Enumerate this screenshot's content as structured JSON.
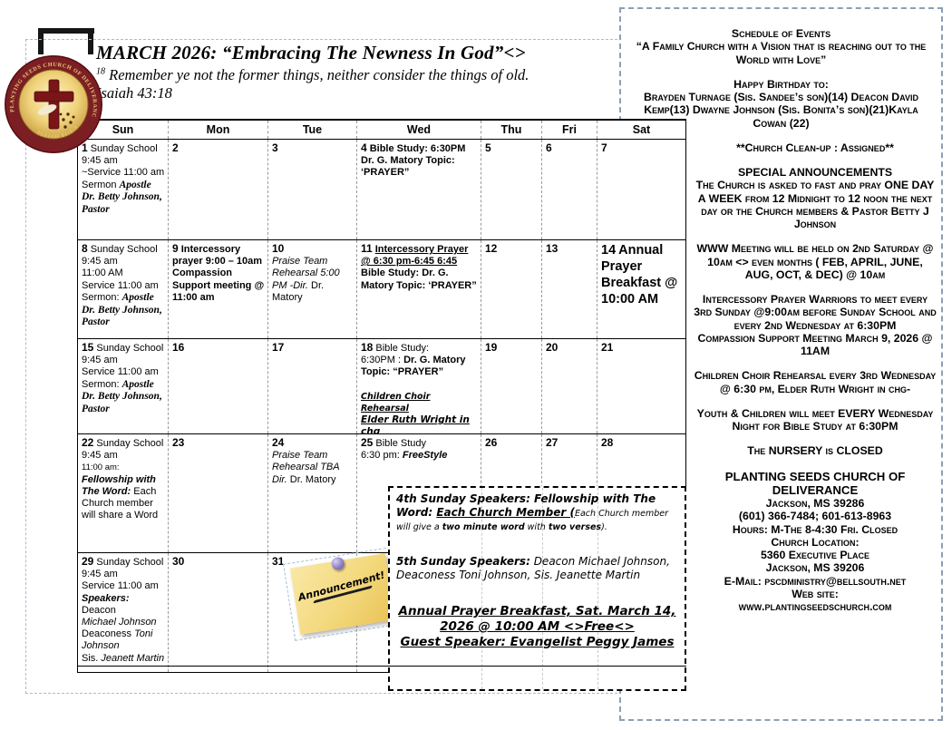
{
  "header": {
    "title": "MARCH 2026: “Embracing The Newness In God”<>",
    "verse_sup": "18",
    "verse": " Remember ye not the former things, neither consider the things of old.",
    "verse_ref": "Isaiah 43:18"
  },
  "logo": {
    "ring_text": "PLANTING SEEDS CHURCH OF DELIVERANCE",
    "bottom_text": "ISAIAH 61:1-3"
  },
  "sticky_note": {
    "text": "Announcement!"
  },
  "calendar": {
    "weekdays": [
      "Sun",
      "Mon",
      "Tue",
      "Wed",
      "Thu",
      "Fri",
      "Sat"
    ],
    "cells": [
      {
        "day": "1",
        "segs": [
          {
            "t": "Sunday School"
          },
          {
            "t": "9:45 am",
            "br": 1
          },
          {
            "t": "~Service 11:00 am Sermon ",
            "br": 1
          },
          {
            "t": "Apostle Dr. Betty Johnson, Pastor",
            "s": "bi"
          }
        ]
      },
      {
        "day": "2",
        "segs": []
      },
      {
        "day": "3",
        "segs": []
      },
      {
        "day": "4",
        "segs": [
          {
            "t": "Bible Study: 6:30PM",
            "s": "b"
          },
          {
            "t": "Dr. G. Matory Topic:",
            "s": "b",
            "br": 1
          },
          {
            "t": "‘PRAYER”",
            "s": "b",
            "br": 1
          }
        ]
      },
      {
        "day": "5",
        "segs": []
      },
      {
        "day": "6",
        "segs": []
      },
      {
        "day": "7",
        "segs": []
      },
      {
        "day": "8",
        "segs": [
          {
            "t": "Sunday School"
          },
          {
            "t": "9:45 am",
            "br": 1
          },
          {
            "t": "11:00 AM",
            "br": 1
          },
          {
            "t": "Service 11:00 am",
            "br": 1
          },
          {
            "t": "Sermon: ",
            "br": 1
          },
          {
            "t": "Apostle Dr. Betty Johnson, Pastor",
            "s": "bi"
          }
        ]
      },
      {
        "day": "9",
        "segs": [
          {
            "t": "Intercessory prayer 9:00 – 10am",
            "s": "b"
          },
          {
            "t": "Compassion Support meeting @ 11:00 am",
            "s": "b",
            "br": 1
          }
        ]
      },
      {
        "day": "10",
        "segs": [
          {
            "t": "Praise Team Rehearsal  5:00 PM ",
            "s": "i",
            "br": 1
          },
          {
            "t": "-Dir.",
            "s": "i"
          },
          {
            "t": " Dr. Matory"
          }
        ]
      },
      {
        "day": "11",
        "segs": [
          {
            "t": "Intercessory Prayer  @ 6:30 pm-6:45 6:45",
            "s": "bu"
          },
          {
            "t": "Bible Study: Dr. G. Matory  Topic:  ‘PRAYER”",
            "s": "b",
            "br": 1
          }
        ]
      },
      {
        "day": "12",
        "segs": []
      },
      {
        "day": "13",
        "segs": []
      },
      {
        "day": "14",
        "big": true,
        "segs": [
          {
            "t": "Annual Prayer Breakfast @ 10:00 AM",
            "s": "big"
          }
        ]
      },
      {
        "day": "15",
        "segs": [
          {
            "t": "Sunday School"
          },
          {
            "t": "9:45 am",
            "br": 1
          },
          {
            "t": "Service 11:00 am",
            "br": 1
          },
          {
            "t": "Sermon: ",
            "br": 1
          },
          {
            "t": "Apostle Dr. Betty Johnson, Pastor",
            "s": "bi"
          }
        ]
      },
      {
        "day": "16",
        "segs": []
      },
      {
        "day": "17",
        "segs": []
      },
      {
        "day": "18",
        "segs": [
          {
            "t": "Bible Study:"
          },
          {
            "t": "6:30PM : ",
            "br": 1
          },
          {
            "t": "Dr. G. Matory ",
            "s": "b"
          },
          {
            "t": "Topic:  “PRAYER”",
            "s": "b",
            "br": 1
          },
          {
            "t": "Children Choir Rehearsal",
            "s": "cu",
            "gap": 1
          },
          {
            "t": "Elder Ruth Wright in chg",
            "s": "cbu2",
            "br": 1
          }
        ]
      },
      {
        "day": "19",
        "segs": []
      },
      {
        "day": "20",
        "segs": []
      },
      {
        "day": "21",
        "segs": []
      },
      {
        "day": "22",
        "segs": [
          {
            "t": "Sunday School"
          },
          {
            "t": "9:45 am",
            "br": 1
          },
          {
            "t": "11:00 am:",
            "s": "sm",
            "br": 1
          },
          {
            "t": "Fellowship with The Word:",
            "s": "bi2",
            "br": 1
          },
          {
            "t": " Each Church member will share a Word"
          }
        ]
      },
      {
        "day": "23",
        "segs": []
      },
      {
        "day": "24",
        "segs": [
          {
            "t": "Praise Team Rehearsal  TBA  ",
            "s": "i",
            "br": 1
          },
          {
            "t": "Dir.",
            "s": "i"
          },
          {
            "t": " Dr. Matory"
          }
        ]
      },
      {
        "day": "25",
        "segs": [
          {
            "t": "Bible Study"
          },
          {
            "t": "6:30 pm:  ",
            "br": 1
          },
          {
            "t": "FreeStyle",
            "s": "bi2"
          }
        ]
      },
      {
        "day": "26",
        "segs": []
      },
      {
        "day": "27",
        "segs": []
      },
      {
        "day": "28",
        "segs": []
      },
      {
        "day": "29",
        "segs": [
          {
            "t": "Sunday School"
          },
          {
            "t": "9:45 am",
            "br": 1
          },
          {
            "t": "Service 11:00 am",
            "br": 1
          },
          {
            "t": "Speakers:",
            "s": "bi2",
            "br": 1
          },
          {
            "t": " Deacon"
          },
          {
            "t": "Michael Johnson",
            "s": "i",
            "br": 1
          },
          {
            "t": "Deaconess ",
            "br": 1
          },
          {
            "t": "Toni Johnson",
            "s": "i"
          },
          {
            "t": "Sis. ",
            "br": 1
          },
          {
            "t": "Jeanett Martin",
            "s": "i"
          }
        ]
      },
      {
        "day": "30",
        "segs": []
      },
      {
        "day": "31",
        "segs": []
      },
      {
        "day": "",
        "segs": []
      },
      {
        "day": "",
        "segs": []
      },
      {
        "day": "",
        "segs": []
      },
      {
        "day": "",
        "segs": []
      }
    ]
  },
  "speakers_box": {
    "paragraphs": [
      {
        "align": "left",
        "segs": [
          {
            "t": "4th Sunday Speakers: Fellowship with The Word: ",
            "s": "cb"
          },
          {
            "t": "Each Church Member (",
            "s": "cbu"
          },
          {
            "t": "Each Church member will give a ",
            "s": "csm"
          },
          {
            "t": "two minute word",
            "s": "csmb"
          },
          {
            "t": " with ",
            "s": "csm"
          },
          {
            "t": "two verses",
            "s": "csmb"
          },
          {
            "t": ").",
            "s": "csm"
          }
        ]
      },
      {
        "align": "left",
        "gap": true,
        "segs": [
          {
            "t": "5th Sunday Speakers:",
            "s": "cb"
          },
          {
            "t": "  Deacon Michael Johnson, Deaconess Toni Johnson, Sis. Jeanette Martin",
            "s": "c"
          }
        ]
      },
      {
        "align": "center",
        "gap": true,
        "cls": "lg",
        "segs": [
          {
            "t": "Annual Prayer Breakfast, Sat. March 14, 2026 @ 10:00 AM <>Free<>",
            "s": "cbu"
          }
        ]
      },
      {
        "align": "center",
        "cls": "lg",
        "segs": [
          {
            "t": "Guest Speaker: Evangelist Peggy James",
            "s": "cbu"
          }
        ]
      }
    ]
  },
  "panel": {
    "top_paragraphs": [
      {
        "text": "Schedule of Events"
      },
      {
        "text": "“A Family Church with a Vision that is reaching out to the World with Love”"
      },
      {
        "text": "Happy Birthday to:",
        "gap": true
      },
      {
        "text": "Brayden Turnage (Sis. Sandee’s son)(14) Deacon David Kemp(13) Dwayne Johnson (Sis. Bonita’s son)(21)Kayla Cowan (22)"
      }
    ],
    "main_paragraphs": [
      {
        "text": "**Church Clean-up : Assigned**",
        "gap": true
      },
      {
        "text": "SPECIAL ANNOUNCEMENTS",
        "gap": true
      },
      {
        "text": "The Church is asked to fast and pray ONE DAY A WEEK  from 12 Midnight to 12 noon the next day or the Church members & Pastor Betty J Johnson"
      },
      {
        "text": "WWW Meeting will be held on 2nd Saturday @ 10am <> even months ( FEB, APRIL, JUNE, AUG, OCT, & DEC) @ 10am",
        "gap": true
      },
      {
        "text": "Intercessory Prayer Warriors to meet every 3rd Sunday @9:00am before Sunday School  and  every 2nd Wednesday at 6:30PM",
        "gap": true
      },
      {
        "text": "Compassion Support Meeting March 9, 2026 @ 11AM"
      },
      {
        "text": "Children Choir Rehearsal  every 3rd Wednesday @ 6:30 pm, Elder Ruth Wright in chg-",
        "gap": true
      },
      {
        "text": "Youth & Children will meet EVERY Wednesday Night for Bible Study at 6:30PM",
        "gap": true
      },
      {
        "text": "The NURSERY is CLOSED",
        "gap": true
      },
      {
        "text": "PLANTING SEEDS CHURCH OF DELIVERANCE",
        "cls": "lg",
        "gap": true
      },
      {
        "text": "Jackson, MS  39286"
      },
      {
        "text": "(601) 366-7484; 601-613-8963"
      },
      {
        "text": "Hours: M-The 8-4:30   Fri. Closed"
      },
      {
        "text": "Church Location:"
      },
      {
        "text": "5360 Executive Place"
      },
      {
        "text": "Jackson, MS 39206"
      },
      {
        "text": "E-Mail: pscdministry@bellsouth.net"
      },
      {
        "text": "Web site:"
      },
      {
        "text": "www.plantingseedschurch.com"
      }
    ]
  }
}
